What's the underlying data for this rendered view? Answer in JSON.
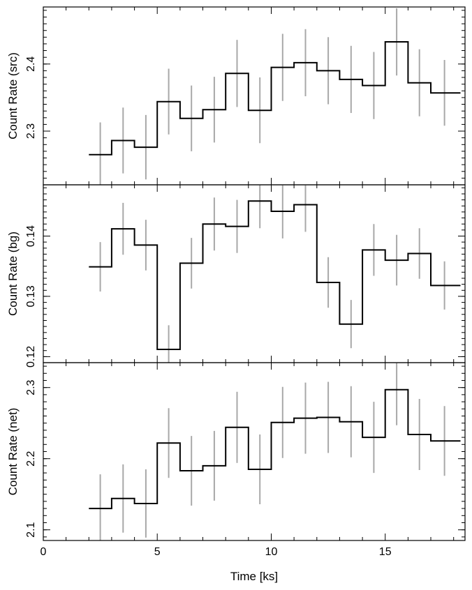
{
  "chart_data": [
    {
      "type": "line",
      "step": true,
      "ylabel": "Count Rate (src)",
      "xlim": [
        0,
        18.5
      ],
      "ylim": [
        2.22,
        2.485
      ],
      "yticks": [
        2.3,
        2.4
      ],
      "ytick_labels": [
        "2.3",
        "2.4"
      ],
      "bin_edges": [
        2.0,
        3.0,
        4.0,
        5.0,
        6.0,
        7.0,
        8.0,
        9.0,
        10.0,
        11.0,
        12.0,
        13.0,
        14.0,
        15.0,
        16.0,
        17.0,
        18.3
      ],
      "x": [
        2.5,
        3.5,
        4.5,
        5.5,
        6.5,
        7.5,
        8.5,
        9.5,
        10.5,
        11.5,
        12.5,
        13.5,
        14.5,
        15.5,
        16.5,
        17.6
      ],
      "y": [
        2.265,
        2.286,
        2.276,
        2.344,
        2.319,
        2.332,
        2.386,
        2.331,
        2.395,
        2.402,
        2.39,
        2.377,
        2.368,
        2.433,
        2.372,
        2.357
      ],
      "err": [
        0.048,
        0.049,
        0.048,
        0.049,
        0.049,
        0.049,
        0.05,
        0.049,
        0.05,
        0.05,
        0.05,
        0.05,
        0.05,
        0.05,
        0.05,
        0.049
      ]
    },
    {
      "type": "line",
      "step": true,
      "ylabel": "Count Rate (bg)",
      "xlim": [
        0,
        18.5
      ],
      "ylim": [
        0.119,
        0.1485
      ],
      "yticks": [
        0.12,
        0.13,
        0.14
      ],
      "ytick_labels": [
        "0.12",
        "0.13",
        "0.14"
      ],
      "bin_edges": [
        2.0,
        3.0,
        4.0,
        5.0,
        6.0,
        7.0,
        8.0,
        9.0,
        10.0,
        11.0,
        12.0,
        13.0,
        14.0,
        15.0,
        16.0,
        17.0,
        18.3
      ],
      "x": [
        2.5,
        3.5,
        4.5,
        5.5,
        6.5,
        7.5,
        8.5,
        9.5,
        10.5,
        11.5,
        12.5,
        13.5,
        14.5,
        15.5,
        16.5,
        17.6
      ],
      "y": [
        0.1349,
        0.1412,
        0.1385,
        0.1212,
        0.1355,
        0.142,
        0.1416,
        0.1458,
        0.1441,
        0.1452,
        0.1323,
        0.1254,
        0.1377,
        0.136,
        0.1371,
        0.1318
      ],
      "err": [
        0.0041,
        0.0043,
        0.0042,
        0.004,
        0.0042,
        0.0044,
        0.0044,
        0.0045,
        0.0045,
        0.0045,
        0.0042,
        0.004,
        0.0043,
        0.0042,
        0.0042,
        0.004
      ]
    },
    {
      "type": "line",
      "step": true,
      "ylabel": "Count Rate (net)",
      "xlabel": "Time [ks]",
      "xlim": [
        0,
        18.5
      ],
      "ylim": [
        2.085,
        2.335
      ],
      "xticks": [
        0,
        5,
        10,
        15
      ],
      "xtick_labels": [
        "0",
        "5",
        "10",
        "15"
      ],
      "yticks": [
        2.1,
        2.2,
        2.3
      ],
      "ytick_labels": [
        "2.1",
        "2.2",
        "2.3"
      ],
      "bin_edges": [
        2.0,
        3.0,
        4.0,
        5.0,
        6.0,
        7.0,
        8.0,
        9.0,
        10.0,
        11.0,
        12.0,
        13.0,
        14.0,
        15.0,
        16.0,
        17.0,
        18.3
      ],
      "x": [
        2.5,
        3.5,
        4.5,
        5.5,
        6.5,
        7.5,
        8.5,
        9.5,
        10.5,
        11.5,
        12.5,
        13.5,
        14.5,
        15.5,
        16.5,
        17.6
      ],
      "y": [
        2.13,
        2.144,
        2.137,
        2.222,
        2.183,
        2.19,
        2.244,
        2.185,
        2.251,
        2.257,
        2.258,
        2.252,
        2.23,
        2.297,
        2.234,
        2.225
      ],
      "err": [
        0.048,
        0.048,
        0.048,
        0.049,
        0.049,
        0.049,
        0.05,
        0.049,
        0.05,
        0.05,
        0.05,
        0.05,
        0.05,
        0.05,
        0.05,
        0.049
      ]
    }
  ],
  "colors": {
    "step_line": "#000000",
    "error_bar": "#a8a8a8",
    "frame": "#000000"
  }
}
